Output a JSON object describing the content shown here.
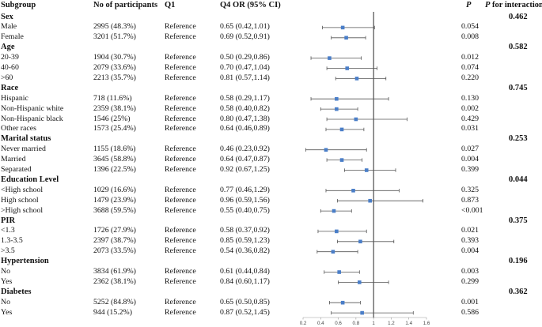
{
  "headers": {
    "subgroup": "Subgroup",
    "participants": "No of participants",
    "q1": "Q1",
    "or": "Q4 OR (95% CI)",
    "p": "P",
    "p_interaction": "P for interaction",
    "p_interaction_italic": "P",
    "p_interaction_rest": " for interaction"
  },
  "chart_data": {
    "type": "forest",
    "xlabel": "",
    "xlim": [
      0.2,
      1.6
    ],
    "ticks": [
      "0.2",
      "0.4",
      "0.6",
      "0.8",
      "1",
      "1.2",
      "1.4",
      "1.6"
    ],
    "tick_values": [
      0.2,
      0.4,
      0.6,
      0.8,
      1.0,
      1.2,
      1.4,
      1.6
    ],
    "reference_line": 1.0,
    "rows": [
      {
        "kind": "group",
        "label": "Sex",
        "p_interaction": "0.462"
      },
      {
        "kind": "item",
        "label": "Male",
        "n": "2995 (48.3%)",
        "q1": "Reference",
        "or_text": "0.65 (0.42,1.01)",
        "or": 0.65,
        "lo": 0.42,
        "hi": 1.01,
        "p": "0.054"
      },
      {
        "kind": "item",
        "label": "Female",
        "n": "3201 (51.7%)",
        "q1": "Reference",
        "or_text": "0.69 (0.52,0.91)",
        "or": 0.69,
        "lo": 0.52,
        "hi": 0.91,
        "p": "0.008"
      },
      {
        "kind": "group",
        "label": "Age",
        "p_interaction": "0.582"
      },
      {
        "kind": "item",
        "label": "20-39",
        "n": "1904 (30.7%)",
        "q1": "Reference",
        "or_text": "0.50 (0.29,0.86)",
        "or": 0.5,
        "lo": 0.29,
        "hi": 0.86,
        "p": "0.012"
      },
      {
        "kind": "item",
        "label": "40-60",
        "n": "2079 (33.6%)",
        "q1": "Reference",
        "or_text": "0.70 (0.47,1.04)",
        "or": 0.7,
        "lo": 0.47,
        "hi": 1.04,
        "p": "0.074"
      },
      {
        "kind": "item",
        "label": ">60",
        "n": "2213 (35.7%)",
        "q1": "Reference",
        "or_text": "0.81 (0.57,1.14)",
        "or": 0.81,
        "lo": 0.57,
        "hi": 1.14,
        "p": "0.220"
      },
      {
        "kind": "group",
        "label": "Race",
        "p_interaction": "0.745"
      },
      {
        "kind": "item",
        "label": "Hispanic",
        "n": "718 (11.6%)",
        "q1": "Reference",
        "or_text": "0.58 (0.29,1.17)",
        "or": 0.58,
        "lo": 0.29,
        "hi": 1.17,
        "p": "0.130"
      },
      {
        "kind": "item",
        "label": "Non-Hispanic white",
        "n": "2359 (38.1%)",
        "q1": "Reference",
        "or_text": "0.58 (0.40,0.82)",
        "or": 0.58,
        "lo": 0.4,
        "hi": 0.82,
        "p": "0.002"
      },
      {
        "kind": "item",
        "label": "Non-Hispanic black",
        "n": "1546 (25%)",
        "q1": "Reference",
        "or_text": "0.80 (0.47,1.38)",
        "or": 0.8,
        "lo": 0.47,
        "hi": 1.38,
        "p": "0.429"
      },
      {
        "kind": "item",
        "label": "Other races",
        "n": "1573 (25.4%)",
        "q1": "Reference",
        "or_text": "0.64 (0.46,0.89)",
        "or": 0.64,
        "lo": 0.46,
        "hi": 0.89,
        "p": "0.031"
      },
      {
        "kind": "group",
        "label": "Marital status",
        "p_interaction": "0.253"
      },
      {
        "kind": "item",
        "label": "Never married",
        "n": "1155 (18.6%)",
        "q1": "Reference",
        "or_text": "0.46 (0.23,0.92)",
        "or": 0.46,
        "lo": 0.23,
        "hi": 0.92,
        "p": "0.027"
      },
      {
        "kind": "item",
        "label": "Married",
        "n": "3645 (58.8%)",
        "q1": "Reference",
        "or_text": "0.64 (0.47,0.87)",
        "or": 0.64,
        "lo": 0.47,
        "hi": 0.87,
        "p": "0.004"
      },
      {
        "kind": "item",
        "label": "Separated",
        "n": "1396 (22.5%)",
        "q1": "Reference",
        "or_text": "0.92 (0.67,1.25)",
        "or": 0.92,
        "lo": 0.67,
        "hi": 1.25,
        "p": "0.399"
      },
      {
        "kind": "group",
        "label": "Education Level",
        "p_interaction": "0.044"
      },
      {
        "kind": "item",
        "label": "<High school",
        "n": "1029 (16.6%)",
        "q1": "Reference",
        "or_text": "0.77 (0.46,1.29)",
        "or": 0.77,
        "lo": 0.46,
        "hi": 1.29,
        "p": "0.325"
      },
      {
        "kind": "item",
        "label": "High school",
        "n": "1479 (23.9%)",
        "q1": "Reference",
        "or_text": "0.96 (0.59,1.56)",
        "or": 0.96,
        "lo": 0.59,
        "hi": 1.56,
        "p": "0.873"
      },
      {
        "kind": "item",
        "label": ">High school",
        "n": "3688 (59.5%)",
        "q1": "Reference",
        "or_text": "0.55 (0.40,0.75)",
        "or": 0.55,
        "lo": 0.4,
        "hi": 0.75,
        "p": "<0.001"
      },
      {
        "kind": "group",
        "label": "PIR",
        "p_interaction": "0.375"
      },
      {
        "kind": "item",
        "label": "<1.3",
        "n": "1726 (27.9%)",
        "q1": "Reference",
        "or_text": "0.58 (0.37,0.92)",
        "or": 0.58,
        "lo": 0.37,
        "hi": 0.92,
        "p": "0.021"
      },
      {
        "kind": "item",
        "label": "1.3-3.5",
        "n": "2397 (38.7%)",
        "q1": "Reference",
        "or_text": "0.85 (0.59,1.23)",
        "or": 0.85,
        "lo": 0.59,
        "hi": 1.23,
        "p": "0.393"
      },
      {
        "kind": "item",
        "label": ">3.5",
        "n": "2073 (33.5%)",
        "q1": "Reference",
        "or_text": "0.54 (0.36,0.82)",
        "or": 0.54,
        "lo": 0.36,
        "hi": 0.82,
        "p": "0.004"
      },
      {
        "kind": "group",
        "label": "Hypertension",
        "p_interaction": "0.196"
      },
      {
        "kind": "item",
        "label": "No",
        "n": "3834 (61.9%)",
        "q1": "Reference",
        "or_text": "0.61 (0.44,0.84)",
        "or": 0.61,
        "lo": 0.44,
        "hi": 0.84,
        "p": "0.003"
      },
      {
        "kind": "item",
        "label": "Yes",
        "n": "2362 (38.1%)",
        "q1": "Reference",
        "or_text": "0.84 (0.60,1.17)",
        "or": 0.84,
        "lo": 0.6,
        "hi": 1.17,
        "p": "0.299"
      },
      {
        "kind": "group",
        "label": "Diabetes",
        "p_interaction": "0.362"
      },
      {
        "kind": "item",
        "label": "No",
        "n": "5252 (84.8%)",
        "q1": "Reference",
        "or_text": "0.65 (0.50,0.85)",
        "or": 0.65,
        "lo": 0.5,
        "hi": 0.85,
        "p": "0.001"
      },
      {
        "kind": "item",
        "label": "Yes",
        "n": "944 (15.2%)",
        "q1": "Reference",
        "or_text": "0.87 (0.52,1.45)",
        "or": 0.87,
        "lo": 0.52,
        "hi": 1.45,
        "p": "0.586"
      }
    ]
  },
  "colors": {
    "marker": "#4a7ec8",
    "ci_line": "#555555",
    "reference_line": "#111111",
    "axis": "#999999",
    "text": "#111111"
  }
}
